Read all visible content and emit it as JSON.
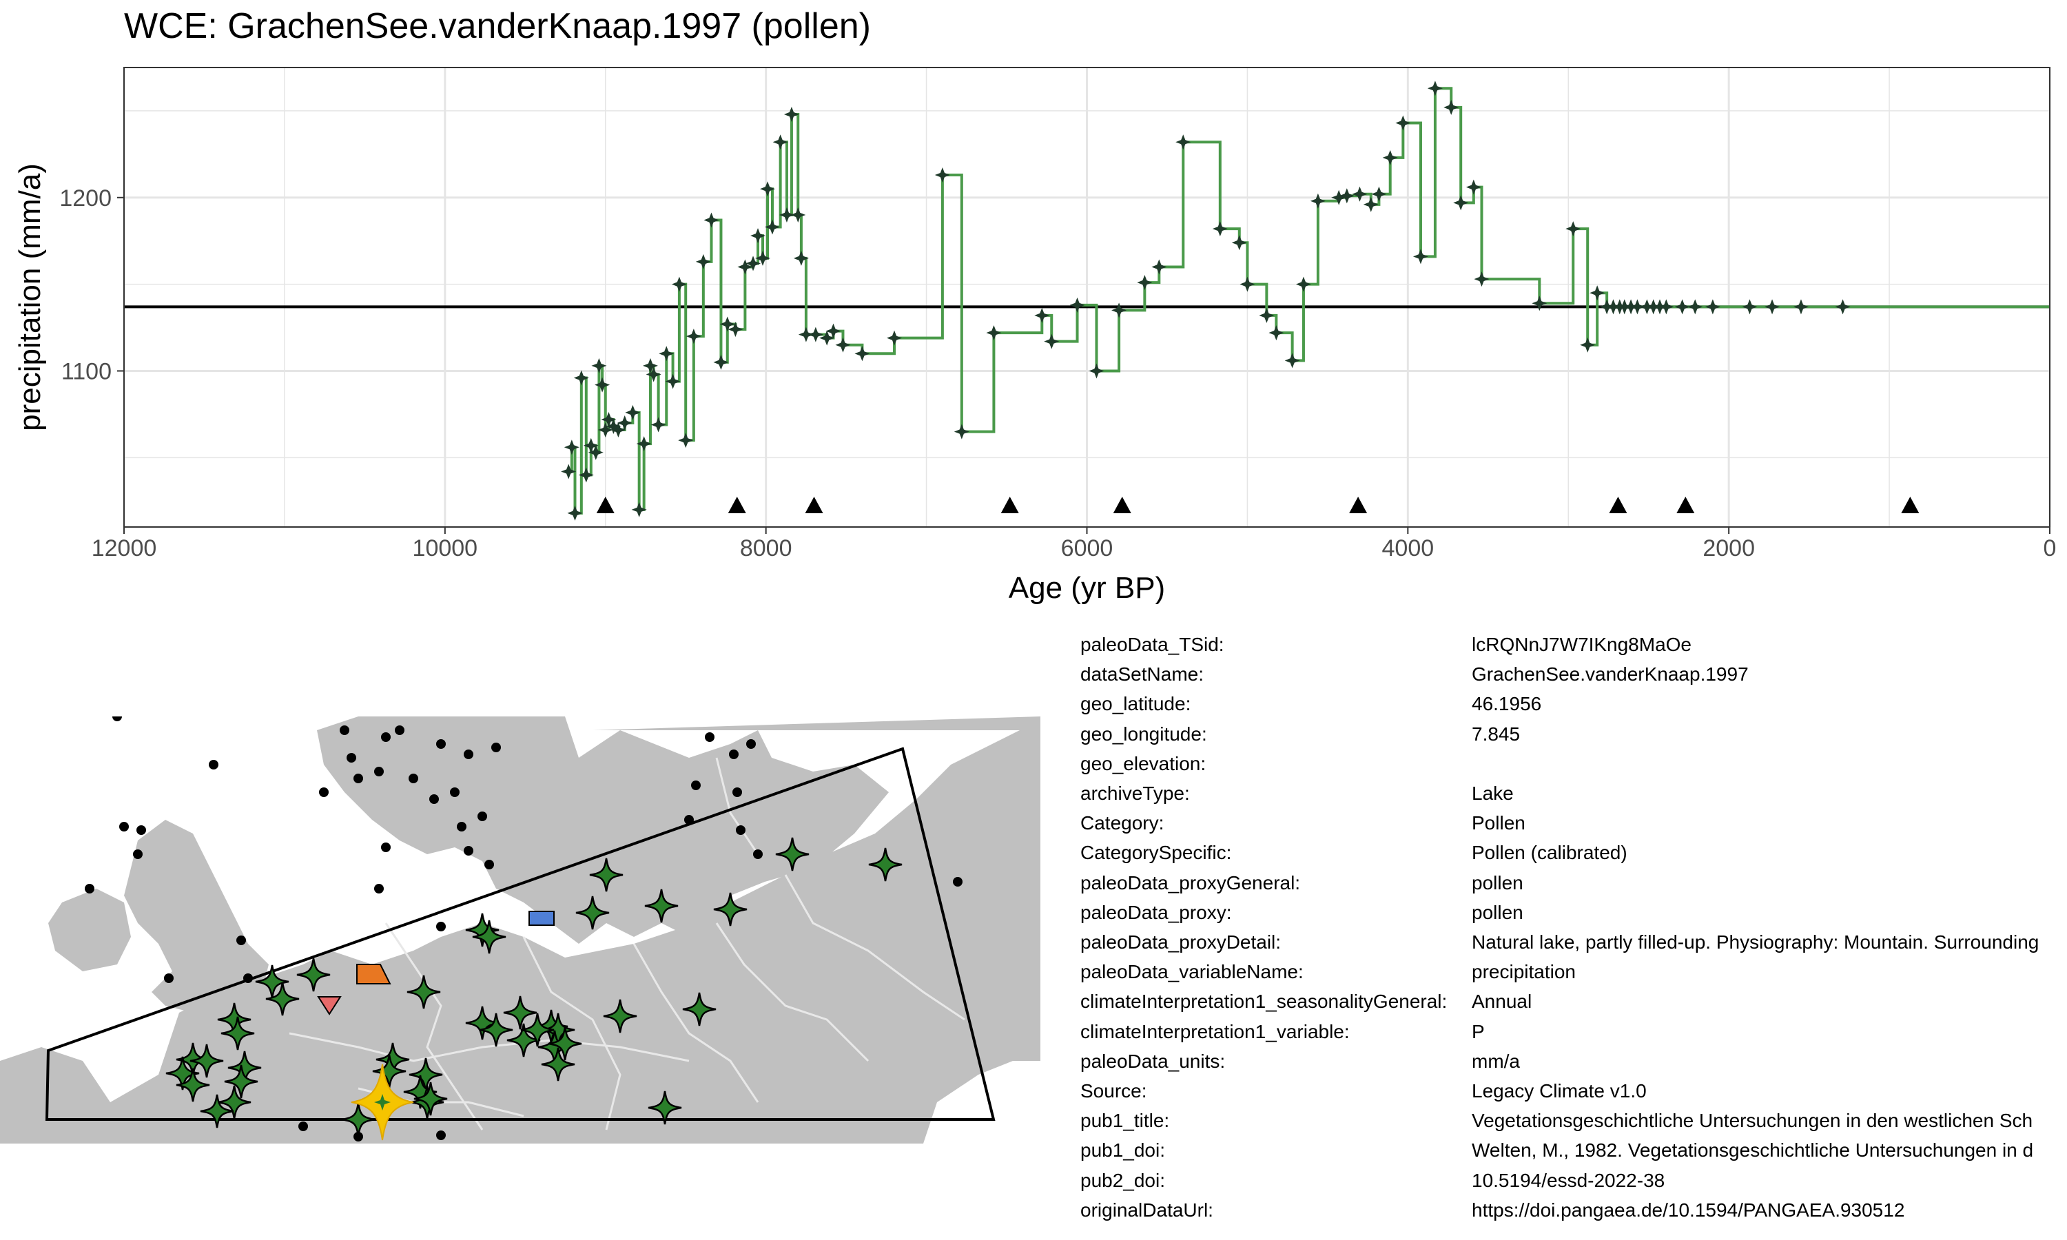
{
  "chart_data": {
    "type": "line",
    "title": "WCE: GrachenSee.vanderKnaap.1997 (pollen)",
    "xlabel": "Age (yr BP)",
    "ylabel": "precipitation (mm/a)",
    "xlim": [
      12000,
      0
    ],
    "ylim": [
      1010,
      1275
    ],
    "x_ticks": [
      "12000",
      "10000",
      "8000",
      "6000",
      "4000",
      "2000",
      "0"
    ],
    "x_tick_values": [
      12000,
      10000,
      8000,
      6000,
      4000,
      2000,
      0
    ],
    "y_ticks": [
      "1100",
      "1200"
    ],
    "y_tick_values": [
      1100,
      1200
    ],
    "grid": true,
    "reference_line": 1137,
    "series": [
      {
        "x": [
          9230,
          9210,
          9190,
          9150,
          9120,
          9090,
          9060,
          9040,
          9020,
          9000,
          8980,
          8950,
          8920,
          8880,
          8830,
          8790,
          8760,
          8720,
          8700,
          8670,
          8620,
          8580,
          8540,
          8500,
          8450,
          8390,
          8340,
          8280,
          8240,
          8190,
          8130,
          8080,
          8050,
          8020,
          7990,
          7960,
          7910,
          7870,
          7840,
          7800,
          7780,
          7750,
          7690,
          7620,
          7580,
          7520,
          7400,
          7200,
          6900,
          6780,
          6580,
          6280,
          6220,
          6060,
          5940,
          5800,
          5640,
          5550,
          5400,
          5170,
          5050,
          5000,
          4880,
          4820,
          4720,
          4650,
          4560,
          4430,
          4380,
          4300,
          4230,
          4180,
          4110,
          4030,
          3920,
          3830,
          3730,
          3670,
          3590,
          3540,
          3180,
          2970,
          2880,
          2820,
          2760,
          2720,
          2680,
          2650,
          2610,
          2570,
          2510,
          2470,
          2430,
          2390,
          2290,
          2210,
          2100,
          1870,
          1730,
          1550,
          1290,
          980,
          750,
          450,
          200
        ],
        "y": [
          1042,
          1056,
          1018,
          1096,
          1040,
          1057,
          1053,
          1103,
          1092,
          1066,
          1072,
          1068,
          1066,
          1070,
          1076,
          1020,
          1058,
          1103,
          1098,
          1069,
          1110,
          1094,
          1150,
          1060,
          1120,
          1163,
          1187,
          1105,
          1127,
          1124,
          1160,
          1162,
          1178,
          1165,
          1205,
          1183,
          1232,
          1190,
          1248,
          1190,
          1165,
          1121,
          1121,
          1119,
          1123,
          1115,
          1110,
          1119,
          1213,
          1065,
          1122,
          1132,
          1117,
          1138,
          1100,
          1135,
          1151,
          1160,
          1232,
          1182,
          1174,
          1150,
          1132,
          1122,
          1106,
          1150,
          1198,
          1200,
          1201,
          1202,
          1196,
          1202,
          1223,
          1243,
          1166,
          1263,
          1252,
          1197,
          1206,
          1153,
          1139,
          1182,
          1115,
          1145,
          1137,
          1137,
          1137,
          1137,
          1137,
          1137,
          1137,
          1137,
          1137,
          1137,
          1137,
          1137,
          1137,
          1137,
          1137,
          1137,
          1137,
          1137,
          1137,
          1137,
          1137
        ]
      }
    ],
    "markers_x": [
      9000,
      8180,
      7700,
      6480,
      5780,
      4310,
      2690,
      2270,
      870
    ],
    "colors": {
      "line": "#4a9a4a",
      "point": "#1f3a2a",
      "grid": "#e5e5e5",
      "reference": "#000000",
      "map_land": "#c0c0c0",
      "map_border": "#e8e8e8",
      "star_fill": "#2a7f2a",
      "target_fill": "#f5c400",
      "orange_marker": "#e87722",
      "blue_marker": "#4f7fd6",
      "red_marker": "#e86a6a"
    }
  },
  "map": {
    "region_polygon": "wedge",
    "legend": []
  },
  "metadata": [
    {
      "key": "paleoData_TSid:",
      "value": "lcRQNnJ7W7IKng8MaOe"
    },
    {
      "key": "dataSetName:",
      "value": "GrachenSee.vanderKnaap.1997"
    },
    {
      "key": "geo_latitude:",
      "value": "46.1956"
    },
    {
      "key": "geo_longitude:",
      "value": "7.845"
    },
    {
      "key": "geo_elevation:",
      "value": ""
    },
    {
      "key": "archiveType:",
      "value": "Lake"
    },
    {
      "key": "Category:",
      "value": "Pollen"
    },
    {
      "key": "CategorySpecific:",
      "value": "Pollen (calibrated)"
    },
    {
      "key": "paleoData_proxyGeneral:",
      "value": "pollen"
    },
    {
      "key": "paleoData_proxy:",
      "value": "pollen"
    },
    {
      "key": "paleoData_proxyDetail:",
      "value": "Natural lake, partly filled-up. Physiography: Mountain. Surrounding"
    },
    {
      "key": "paleoData_variableName:",
      "value": "precipitation"
    },
    {
      "key": "climateInterpretation1_seasonalityGeneral:",
      "value": "Annual"
    },
    {
      "key": "climateInterpretation1_variable:",
      "value": "P"
    },
    {
      "key": "paleoData_units:",
      "value": "mm/a"
    },
    {
      "key": "Source:",
      "value": "Legacy Climate v1.0"
    },
    {
      "key": "pub1_title:",
      "value": "Vegetationsgeschichtliche Untersuchungen in den westlichen Sch"
    },
    {
      "key": "pub1_doi:",
      "value": "Welten, M., 1982. Vegetationsgeschichtliche Untersuchungen in d"
    },
    {
      "key": "pub2_doi:",
      "value": "10.5194/essd-2022-38"
    },
    {
      "key": "originalDataUrl:",
      "value": "https://doi.pangaea.de/10.1594/PANGAEA.930512"
    }
  ]
}
